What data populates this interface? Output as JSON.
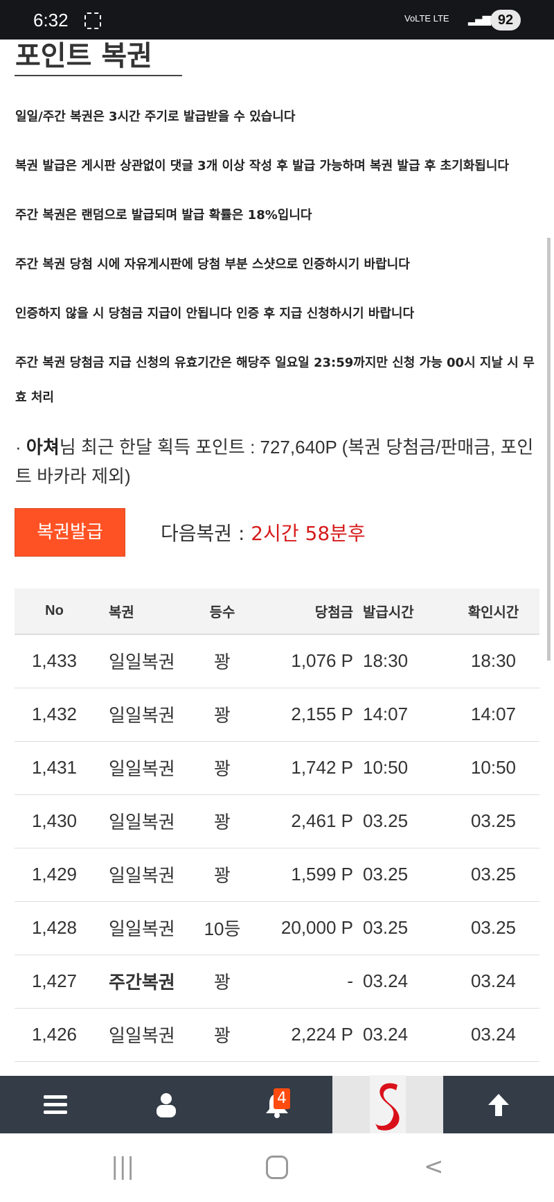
{
  "status_bar": {
    "time": "6:32",
    "network": "VoLTE LTE",
    "battery": "92"
  },
  "page": {
    "title": "포인트 복권",
    "rules": [
      "일일/주간 복권은 3시간 주기로 발급받을 수 있습니다",
      "복권 발급은 게시판 상관없이 댓글 3개 이상 작성 후 발급 가능하며 복권 발급 후 초기화됩니다",
      "주간 복권은 랜덤으로 발급되며 발급 확률은 18%입니다",
      "주간 복권 당첨 시에 자유게시판에 당첨 부분 스샷으로 인증하시기 바랍니다",
      "인증하지 않을 시 당첨금 지급이 안됩니다 인증 후 지급 신청하시기 바랍니다",
      "주간 복권 당첨금 지급 신청의 유효기간은 해당주 일요일 23:59까지만 신청 가능 00시 지날 시 무효 처리"
    ],
    "points": {
      "bullet": "·",
      "user": "아쳐",
      "text": "님 최근 한달 획득 포인트 : 727,640P (복권 당첨금/판매금, 포인트 바카라 제외)"
    },
    "issue_button": "복권발급",
    "next_label": "다음복권 : ",
    "next_value": "2시간 58분후"
  },
  "table": {
    "headers": [
      "No",
      "복권",
      "등수",
      "당첨금",
      "발급시간",
      "확인시간"
    ],
    "rows": [
      [
        "1,433",
        "일일복권",
        "꽝",
        "1,076 P",
        "18:30",
        "18:30"
      ],
      [
        "1,432",
        "일일복권",
        "꽝",
        "2,155 P",
        "14:07",
        "14:07"
      ],
      [
        "1,431",
        "일일복권",
        "꽝",
        "1,742 P",
        "10:50",
        "10:50"
      ],
      [
        "1,430",
        "일일복권",
        "꽝",
        "2,461 P",
        "03.25",
        "03.25"
      ],
      [
        "1,429",
        "일일복권",
        "꽝",
        "1,599 P",
        "03.25",
        "03.25"
      ],
      [
        "1,428",
        "일일복권",
        "10등",
        "20,000 P",
        "03.25",
        "03.25"
      ],
      [
        "1,427",
        "주간복권",
        "꽝",
        "-",
        "03.24",
        "03.24"
      ],
      [
        "1,426",
        "일일복권",
        "꽝",
        "2,224 P",
        "03.24",
        "03.24"
      ]
    ]
  },
  "bottom_nav": {
    "notification_count": "4",
    "items": [
      "menu-icon",
      "user-icon",
      "bell-icon",
      "site-logo",
      "arrow-up-icon"
    ]
  },
  "colors": {
    "accent": "#ff5224",
    "next_time": "#d61a1a",
    "nav_bg": "#333c47"
  }
}
